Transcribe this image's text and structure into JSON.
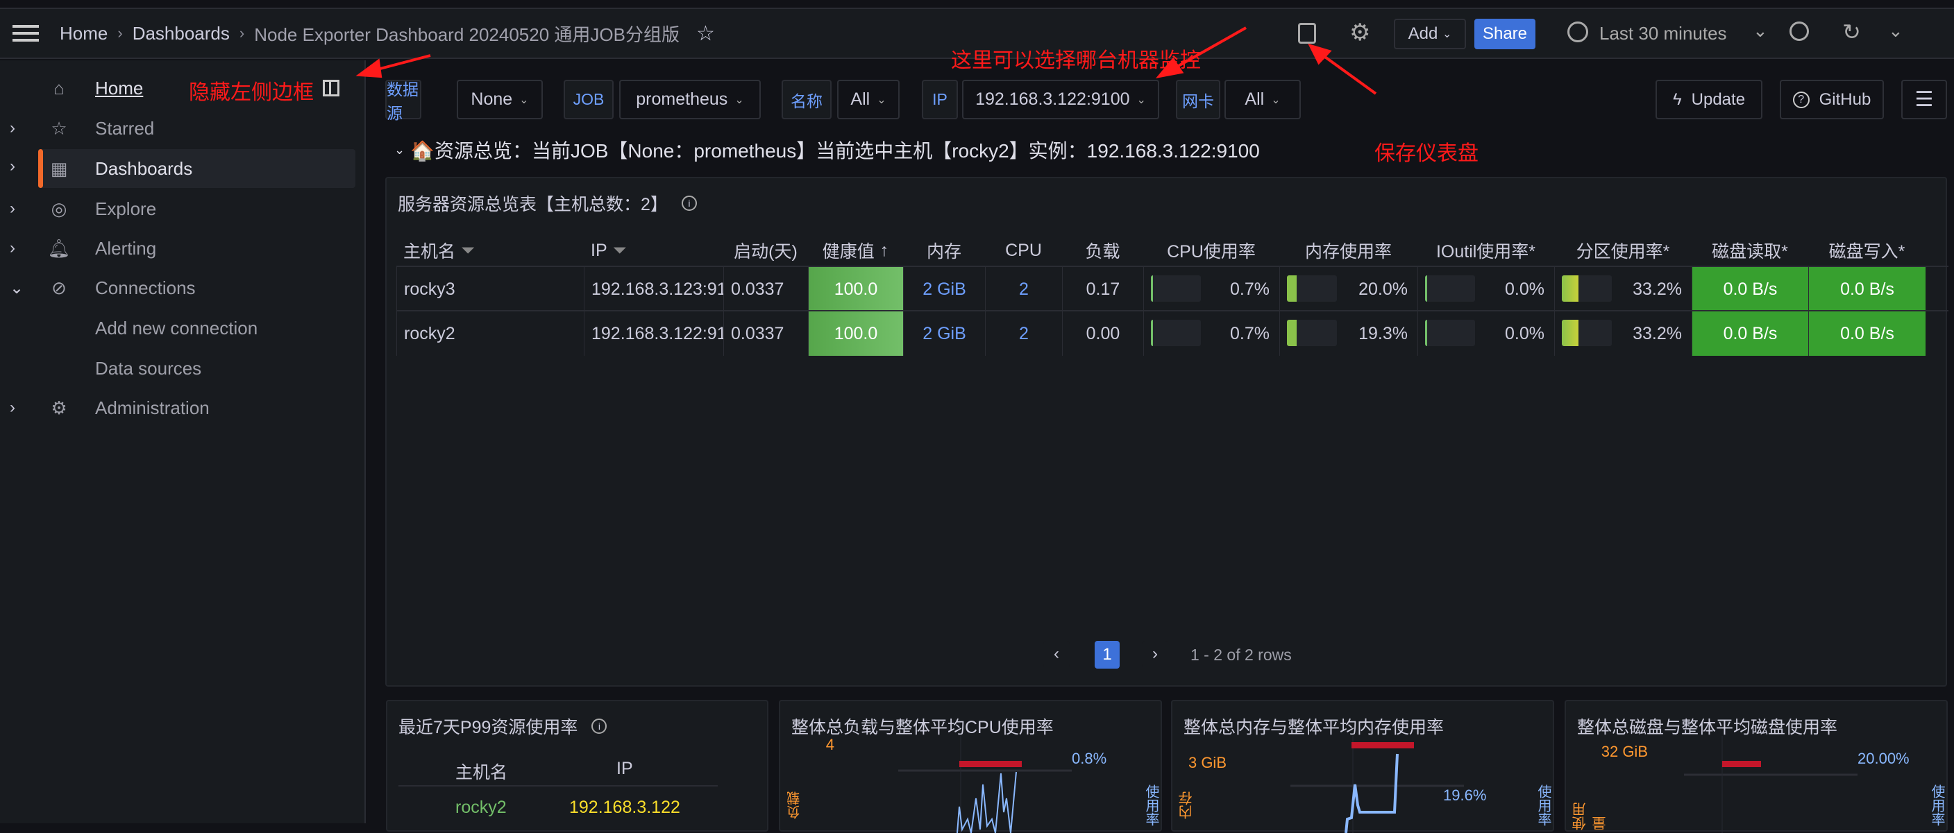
{
  "breadcrumb": {
    "home": "Home",
    "dashboards": "Dashboards",
    "title": "Node Exporter Dashboard 20240520 通用JOB分组版"
  },
  "toolbar": {
    "add": "Add",
    "share": "Share",
    "time_range": "Last 30 minutes"
  },
  "sidebar": {
    "items": [
      {
        "label": "Home",
        "icon": "home-icon"
      },
      {
        "label": "Starred",
        "icon": "star-icon"
      },
      {
        "label": "Dashboards",
        "icon": "apps-icon"
      },
      {
        "label": "Explore",
        "icon": "compass-icon"
      },
      {
        "label": "Alerting",
        "icon": "bell-icon"
      },
      {
        "label": "Connections",
        "icon": "link-icon"
      },
      {
        "label": "Add new connection"
      },
      {
        "label": "Data sources"
      },
      {
        "label": "Administration",
        "icon": "gear-icon"
      }
    ]
  },
  "variables": [
    {
      "label": "数据源",
      "value": "None"
    },
    {
      "label": "JOB",
      "value": "prometheus"
    },
    {
      "label": "名称",
      "value": "All"
    },
    {
      "label": "IP",
      "value": "192.168.3.122:9100"
    },
    {
      "label": "网卡",
      "value": "All"
    }
  ],
  "links": {
    "update": "Update",
    "github": "GitHub"
  },
  "row_title": "🏠资源总览：当前JOB【None：prometheus】当前选中主机【rocky2】实例：192.168.3.122:9100",
  "annotations": {
    "hide_sidebar": "隐藏左侧边框",
    "select_machine": "这里可以选择哪台机器监控",
    "save_dashboard": "保存仪表盘"
  },
  "table": {
    "title": "服务器资源总览表【主机总数：2】",
    "headers": [
      "主机名",
      "IP",
      "启动(天)",
      "健康值",
      "内存",
      "CPU",
      "负载",
      "CPU使用率",
      "内存使用率",
      "IOutil使用率*",
      "分区使用率*",
      "磁盘读取*",
      "磁盘写入*"
    ],
    "rows": [
      {
        "host": "rocky3",
        "ip": "192.168.3.123:91",
        "uptime": "0.0337",
        "health": "100.0",
        "mem": "2 GiB",
        "cpu": "2",
        "load": "0.17",
        "cpu_pct": "0.7%",
        "cpu_frac": 0.007,
        "mem_pct": "20.0%",
        "mem_frac": 0.2,
        "io_pct": "0.0%",
        "io_frac": 0,
        "part_pct": "33.2%",
        "part_frac": 0.332,
        "read": "0.0 B/s",
        "write": "0.0 B/s"
      },
      {
        "host": "rocky2",
        "ip": "192.168.3.122:91",
        "uptime": "0.0337",
        "health": "100.0",
        "mem": "2 GiB",
        "cpu": "2",
        "load": "0.00",
        "cpu_pct": "0.7%",
        "cpu_frac": 0.007,
        "mem_pct": "19.3%",
        "mem_frac": 0.193,
        "io_pct": "0.0%",
        "io_frac": 0,
        "part_pct": "33.2%",
        "part_frac": 0.332,
        "read": "0.0 B/s",
        "write": "0.0 B/s"
      }
    ],
    "page": "1",
    "rows_info": "1 - 2 of 2 rows"
  },
  "bottom": {
    "p99": {
      "title": "最近7天P99资源使用率",
      "headers": [
        "主机名",
        "IP"
      ],
      "host": "rocky2",
      "ip": "192.168.3.122"
    },
    "load": {
      "title": "整体总负载与整体平均CPU使用率",
      "left_tick": "4",
      "right_val": "0.8%",
      "left_axis": "负载",
      "right_axis": "使用率"
    },
    "mem": {
      "title": "整体总内存与整体平均内存使用率",
      "left_tick": "3 GiB",
      "right_val": "19.6%",
      "left_axis": "内存",
      "right_axis": "使用率"
    },
    "disk": {
      "title": "整体总磁盘与整体平均磁盘使用率",
      "left_tick": "32 GiB",
      "right_val": "20.00%",
      "left_axis": "使用量",
      "right_axis": "使用率"
    }
  },
  "colors": {
    "accent": "#f2692a",
    "share": "#3d71d9",
    "health": "#73bf69",
    "disk_cell": "#37a02f",
    "annotation": "#ff1a1a",
    "link_blue": "#6e9fff"
  }
}
